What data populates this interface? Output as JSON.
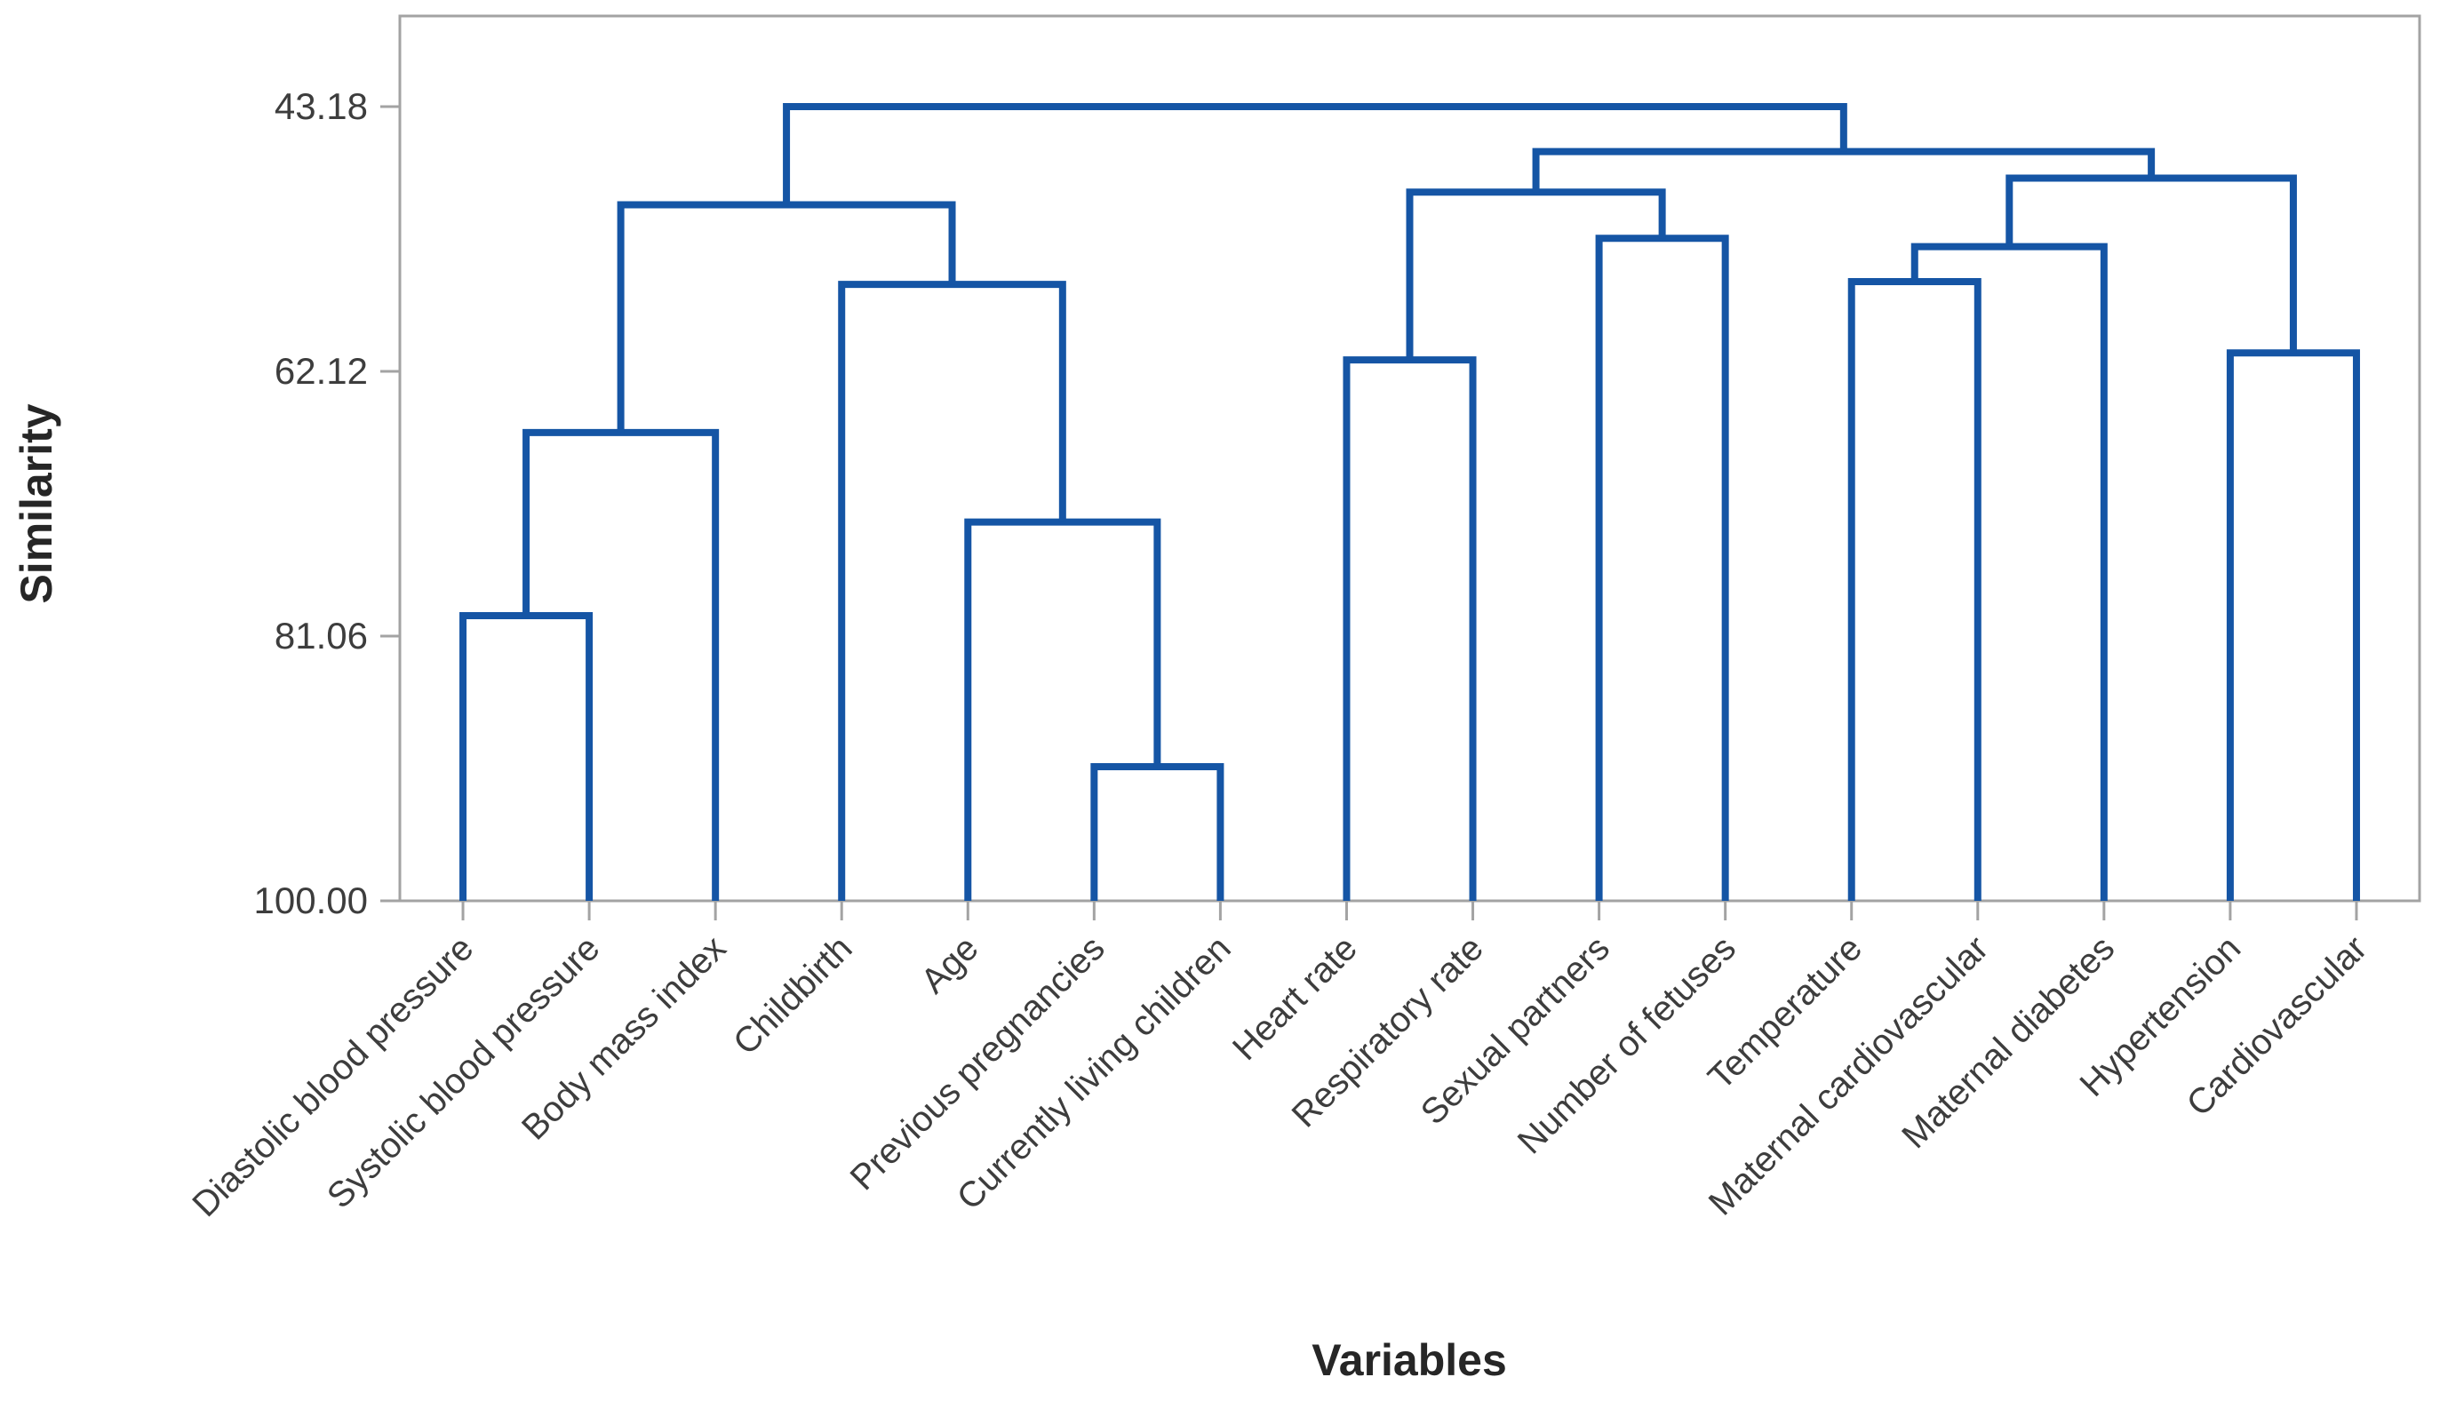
{
  "chart_data": {
    "type": "dendrogram",
    "title": "",
    "xlabel": "Variables",
    "ylabel": "Similarity",
    "axis_range": [
      43.18,
      100.0
    ],
    "y_ticks": [
      {
        "value": 43.18,
        "label": "43.18"
      },
      {
        "value": 62.12,
        "label": "62.12"
      },
      {
        "value": 81.06,
        "label": "81.06"
      },
      {
        "value": 100.0,
        "label": "100.00"
      }
    ],
    "grid": "off",
    "legend": "none",
    "categories": [
      "Diastolic blood pressure",
      "Systolic blood pressure",
      "Body mass index",
      "Childbirth",
      "Age",
      "Previous pregnancies",
      "Currently living children",
      "Heart rate",
      "Respiratory rate",
      "Sexual partners",
      "Number of fetuses",
      "Temperature",
      "Maternal cardiovascular",
      "Maternal diabetes",
      "Hypertension",
      "Cardiovascular"
    ],
    "merges": [
      {
        "id": "M0",
        "left": "L0",
        "right": "L1",
        "similarity": 79.6
      },
      {
        "id": "M1",
        "left": "M0",
        "right": "L2",
        "similarity": 66.5
      },
      {
        "id": "M2",
        "left": "L5",
        "right": "L6",
        "similarity": 90.4
      },
      {
        "id": "M3",
        "left": "L4",
        "right": "M2",
        "similarity": 72.9
      },
      {
        "id": "M4",
        "left": "L3",
        "right": "M3",
        "similarity": 55.9
      },
      {
        "id": "M5",
        "left": "M1",
        "right": "M4",
        "similarity": 50.2
      },
      {
        "id": "M6",
        "left": "L7",
        "right": "L8",
        "similarity": 61.3
      },
      {
        "id": "M7",
        "left": "L9",
        "right": "L10",
        "similarity": 52.6
      },
      {
        "id": "M8",
        "left": "M6",
        "right": "M7",
        "similarity": 49.3
      },
      {
        "id": "M9",
        "left": "L11",
        "right": "L12",
        "similarity": 55.7
      },
      {
        "id": "M10",
        "left": "M9",
        "right": "L13",
        "similarity": 53.2
      },
      {
        "id": "M11",
        "left": "L14",
        "right": "L15",
        "similarity": 60.8
      },
      {
        "id": "M12",
        "left": "M10",
        "right": "M11",
        "similarity": 48.3
      },
      {
        "id": "M13",
        "left": "M8",
        "right": "M12",
        "similarity": 46.4
      },
      {
        "id": "M14",
        "left": "M5",
        "right": "M13",
        "similarity": 43.18
      }
    ],
    "colors": {
      "line": "#1555A5",
      "frame": "#A3A3A3",
      "tick_text": "#3D3D3D",
      "title_text": "#262626",
      "background": "#FFFFFF"
    }
  }
}
